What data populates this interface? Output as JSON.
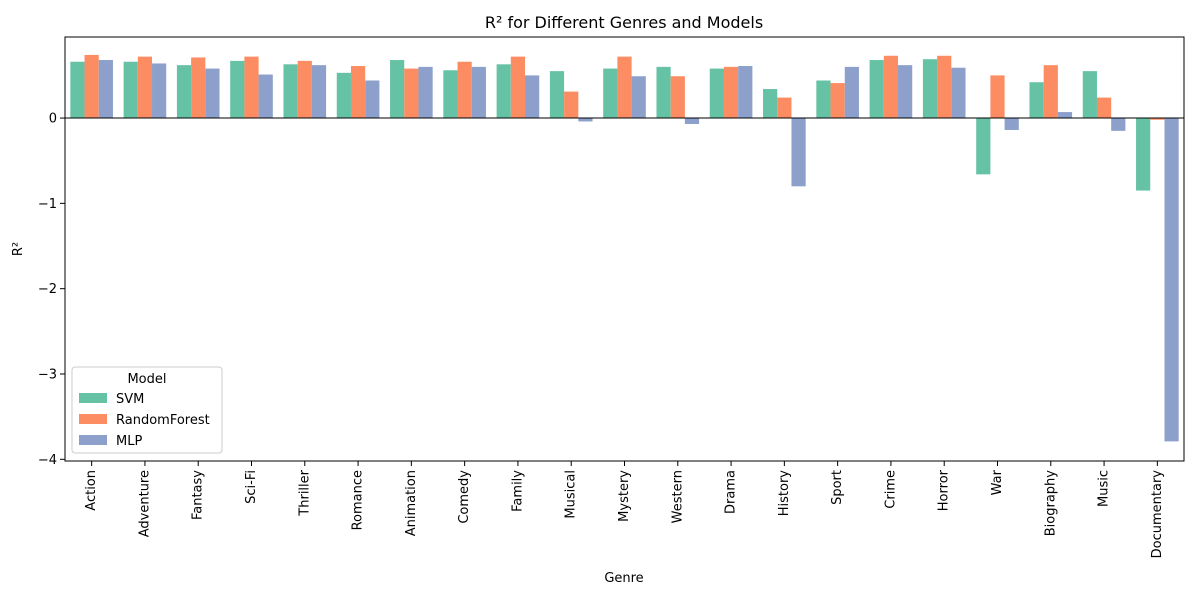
{
  "chart_data": {
    "type": "bar",
    "title": "R² for Different Genres and Models",
    "xlabel": "Genre",
    "ylabel": "R²",
    "ylim": [
      -4.02,
      0.95
    ],
    "yticks": [
      -4,
      -3,
      -2,
      -1,
      0
    ],
    "ytick_labels": [
      "−4",
      "−3",
      "−2",
      "−1",
      "0"
    ],
    "grid": false,
    "legend": {
      "title": "Model",
      "placement": "lower-left"
    },
    "categories": [
      "Action",
      "Adventure",
      "Fantasy",
      "Sci-Fi",
      "Thriller",
      "Romance",
      "Animation",
      "Comedy",
      "Family",
      "Musical",
      "Mystery",
      "Western",
      "Drama",
      "History",
      "Sport",
      "Crime",
      "Horror",
      "War",
      "Biography",
      "Music",
      "Documentary"
    ],
    "series": [
      {
        "name": "SVM",
        "color": "#66c2a5",
        "values": [
          0.66,
          0.66,
          0.62,
          0.67,
          0.63,
          0.53,
          0.68,
          0.56,
          0.63,
          0.55,
          0.58,
          0.6,
          0.58,
          0.34,
          0.44,
          0.68,
          0.69,
          -0.66,
          0.42,
          0.55,
          -0.85
        ]
      },
      {
        "name": "RandomForest",
        "color": "#fc8d62",
        "values": [
          0.74,
          0.72,
          0.71,
          0.72,
          0.67,
          0.61,
          0.58,
          0.66,
          0.72,
          0.31,
          0.72,
          0.49,
          0.6,
          0.24,
          0.41,
          0.73,
          0.73,
          0.5,
          0.62,
          0.24,
          -0.02
        ]
      },
      {
        "name": "MLP",
        "color": "#8da0cb",
        "values": [
          0.68,
          0.64,
          0.58,
          0.51,
          0.62,
          0.44,
          0.6,
          0.6,
          0.5,
          -0.04,
          0.49,
          -0.07,
          0.61,
          -0.8,
          0.6,
          0.62,
          0.59,
          -0.14,
          0.07,
          -0.15,
          -3.79
        ]
      }
    ]
  }
}
